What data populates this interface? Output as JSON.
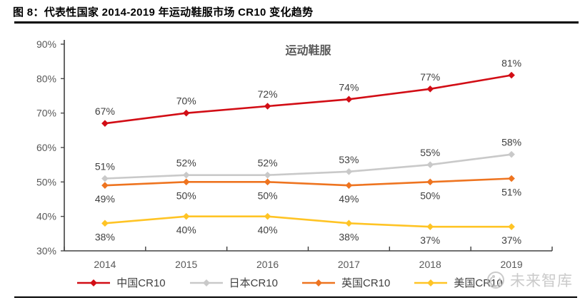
{
  "header": {
    "figure_label": "图 8：代表性国家 2014-2019 年运动鞋服市场 CR10 变化趋势"
  },
  "chart_data": {
    "type": "line",
    "title": "运动鞋服",
    "categories": [
      "2014",
      "2015",
      "2016",
      "2017",
      "2018",
      "2019"
    ],
    "xlabel": "",
    "ylabel": "",
    "ylim": [
      30,
      90
    ],
    "y_tick_step": 10,
    "y_tick_labels": [
      "30%",
      "40%",
      "50%",
      "60%",
      "70%",
      "80%",
      "90%"
    ],
    "grid": false,
    "legend_position": "bottom",
    "series": [
      {
        "name": "中国CR10",
        "color": "#D20D15",
        "label_position": "above",
        "values": [
          67,
          70,
          72,
          74,
          77,
          81
        ]
      },
      {
        "name": "日本CR10",
        "color": "#C9C9C9",
        "label_position": "above",
        "values": [
          51,
          52,
          52,
          53,
          55,
          58
        ]
      },
      {
        "name": "英国CR10",
        "color": "#EE7420",
        "label_position": "below",
        "values": [
          49,
          50,
          50,
          49,
          50,
          51
        ]
      },
      {
        "name": "美国CR10",
        "color": "#FFC425",
        "label_position": "below",
        "values": [
          38,
          40,
          40,
          38,
          37,
          37
        ]
      }
    ]
  },
  "watermark": {
    "text": "未来智库"
  }
}
